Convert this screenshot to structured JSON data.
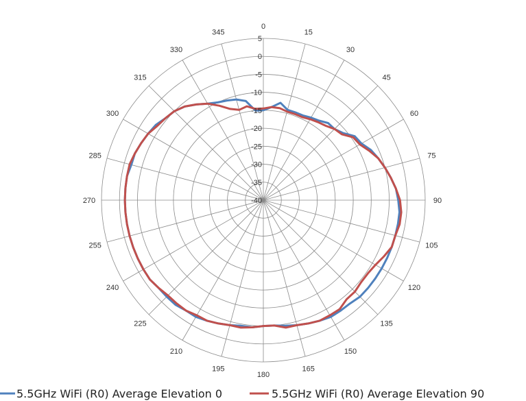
{
  "chart_data": {
    "type": "radar",
    "angle_labels": [
      "0",
      "15",
      "30",
      "45",
      "60",
      "75",
      "90",
      "105",
      "120",
      "135",
      "150",
      "165",
      "180",
      "195",
      "210",
      "225",
      "240",
      "255",
      "270",
      "285",
      "300",
      "315",
      "330",
      "345"
    ],
    "radial_labels": [
      "5",
      "0",
      "-5",
      "-10",
      "-15",
      "-20",
      "-25",
      "-30",
      "-35",
      "-40"
    ],
    "rlim": [
      -40,
      5
    ],
    "grid": true,
    "legend_position": "bottom",
    "series": [
      {
        "name": "5.5GHz WiFi (R0) Average Elevation 0",
        "color": "#4f81bd",
        "angles": [
          0,
          5,
          10,
          15,
          20,
          25,
          30,
          35,
          40,
          45,
          50,
          55,
          60,
          65,
          70,
          75,
          80,
          85,
          90,
          95,
          100,
          105,
          110,
          115,
          120,
          125,
          130,
          135,
          140,
          145,
          150,
          155,
          160,
          165,
          170,
          175,
          180,
          185,
          190,
          195,
          200,
          205,
          210,
          215,
          220,
          225,
          230,
          235,
          240,
          245,
          250,
          255,
          260,
          265,
          270,
          275,
          280,
          285,
          290,
          295,
          300,
          305,
          310,
          315,
          320,
          325,
          330,
          335,
          340,
          345,
          350,
          355
        ],
        "values": [
          -15,
          -14,
          -12.5,
          -14,
          -14,
          -14,
          -13.5,
          -13,
          -12,
          -12,
          -11,
          -9,
          -8.5,
          -7,
          -6,
          -5,
          -4,
          -3,
          -2.5,
          -2,
          -2,
          -2,
          -2,
          -2,
          -2,
          -2,
          -2,
          -2,
          -2.5,
          -2.5,
          -2.5,
          -3,
          -3.5,
          -4,
          -4.5,
          -5,
          -5,
          -4.5,
          -4.5,
          -4,
          -3.5,
          -3,
          -2.5,
          -2.5,
          -2,
          -2,
          -2,
          -1.5,
          -1.5,
          -1.5,
          -1.5,
          -1.5,
          -1.5,
          -1.5,
          -1.5,
          -1.5,
          -1.5,
          -2,
          -2,
          -2.5,
          -3,
          -3.5,
          -4.5,
          -5,
          -6,
          -7.5,
          -9,
          -10,
          -10.5,
          -11,
          -12,
          -15
        ]
      },
      {
        "name": "5.5GHz WiFi (R0) Average Elevation 90",
        "color": "#c0504d",
        "angles": [
          0,
          5,
          10,
          15,
          20,
          25,
          30,
          35,
          40,
          45,
          50,
          55,
          60,
          65,
          70,
          75,
          80,
          85,
          90,
          95,
          100,
          105,
          110,
          115,
          120,
          125,
          130,
          135,
          140,
          145,
          150,
          155,
          160,
          165,
          170,
          175,
          180,
          185,
          190,
          195,
          200,
          205,
          210,
          215,
          220,
          225,
          230,
          235,
          240,
          245,
          250,
          255,
          260,
          265,
          270,
          275,
          280,
          285,
          290,
          295,
          300,
          305,
          310,
          315,
          320,
          325,
          330,
          335,
          340,
          345,
          350,
          355
        ],
        "values": [
          -14.5,
          -14,
          -14,
          -14.5,
          -14.5,
          -14.5,
          -14,
          -13.5,
          -13,
          -12,
          -11.5,
          -9.5,
          -9,
          -7.5,
          -6,
          -5,
          -4,
          -3,
          -2,
          -1.5,
          -1.5,
          -2,
          -2,
          -3,
          -4,
          -4.5,
          -4.5,
          -4,
          -4,
          -3,
          -3,
          -3,
          -3.5,
          -4,
          -4,
          -5,
          -5,
          -4.5,
          -4,
          -4,
          -3.5,
          -3,
          -3,
          -2.5,
          -2.5,
          -2.5,
          -2,
          -1.5,
          -1.5,
          -1.5,
          -1.5,
          -1.5,
          -1.5,
          -1.5,
          -1.5,
          -1.5,
          -1.5,
          -1.5,
          -2,
          -2.5,
          -3,
          -4,
          -4.5,
          -5,
          -6,
          -7.5,
          -9,
          -11,
          -13,
          -14,
          -13.5,
          -14.5
        ]
      }
    ]
  }
}
